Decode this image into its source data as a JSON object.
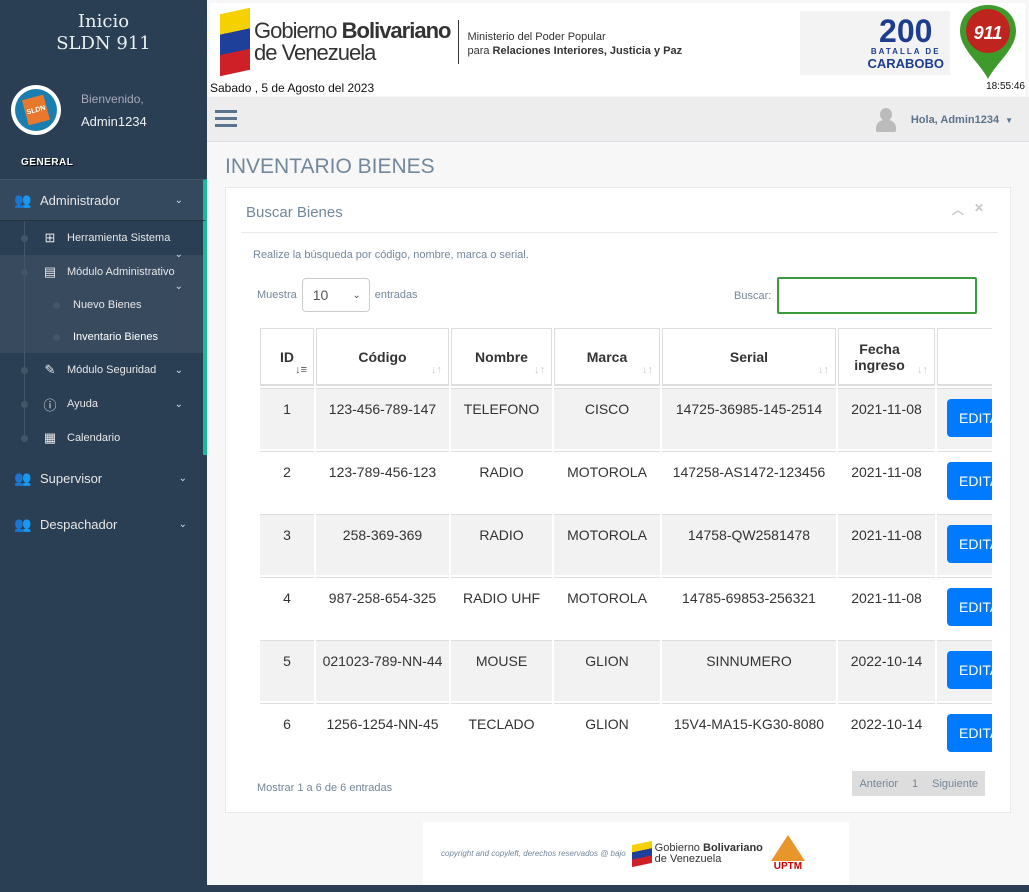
{
  "sidebar": {
    "brand_line1": "Inicio",
    "brand_line2": "SLDN 911",
    "logo_text": "SLDN 911",
    "welcome": "Bienvenido,",
    "username": "Admin1234",
    "section": "GENERAL",
    "items": [
      {
        "label": "Administrador"
      },
      {
        "label": "Herramienta Sistema"
      },
      {
        "label": "Módulo Administrativo"
      },
      {
        "label": "Nuevo Bienes"
      },
      {
        "label": "Inventario Bienes"
      },
      {
        "label": "Módulo Seguridad"
      },
      {
        "label": "Ayuda"
      },
      {
        "label": "Calendario"
      },
      {
        "label": "Supervisor"
      },
      {
        "label": "Despachador"
      }
    ]
  },
  "banner": {
    "gob1": "Gobierno",
    "gob2": "Bolivariano",
    "gob3": "de Venezuela",
    "min1": "Ministerio del Poder Popular",
    "min2": "para",
    "min3": "Relaciones Interiores, Justicia y Paz",
    "date": "Sabado , 5 de Agosto del 2023",
    "time": "18:55:46",
    "bat_num": "200",
    "bat_sub": "BATALLA DE",
    "bat_name": "CARABOBO",
    "pin": "911"
  },
  "topnav": {
    "user": "Hola, Admin1234"
  },
  "page": {
    "title": "INVENTARIO BIENES"
  },
  "panel": {
    "title": "Buscar Bienes",
    "hint": "Realize la búsqueda por código, nombre, marca o serial.",
    "show": "Muestra",
    "entries": "entradas",
    "length": "10",
    "search_label": "Buscar:",
    "search_value": "",
    "columns": [
      "ID",
      "Código",
      "Nombre",
      "Marca",
      "Serial",
      "Fecha ingreso"
    ],
    "rows": [
      {
        "id": "1",
        "codigo": "123-456-789-147",
        "nombre": "TELEFONO",
        "marca": "CISCO",
        "serial": "14725-36985-145-2514",
        "fecha": "2021-11-08",
        "action": "EDITAR"
      },
      {
        "id": "2",
        "codigo": "123-789-456-123",
        "nombre": "RADIO",
        "marca": "MOTOROLA",
        "serial": "147258-AS1472-123456",
        "fecha": "2021-11-08",
        "action": "EDITAR"
      },
      {
        "id": "3",
        "codigo": "258-369-369",
        "nombre": "RADIO",
        "marca": "MOTOROLA",
        "serial": "14758-QW2581478",
        "fecha": "2021-11-08",
        "action": "EDITAR"
      },
      {
        "id": "4",
        "codigo": "987-258-654-325",
        "nombre": "RADIO UHF",
        "marca": "MOTOROLA",
        "serial": "14785-69853-256321",
        "fecha": "2021-11-08",
        "action": "EDITAR"
      },
      {
        "id": "5",
        "codigo": "021023-789-NN-44",
        "nombre": "MOUSE",
        "marca": "GLION",
        "serial": "SINNUMERO",
        "fecha": "2022-10-14",
        "action": "EDITAR"
      },
      {
        "id": "6",
        "codigo": "1256-1254-NN-45",
        "nombre": "TECLADO",
        "marca": "GLION",
        "serial": "15V4-MA15-KG30-8080",
        "fecha": "2022-10-14",
        "action": "EDITAR"
      }
    ],
    "info": "Mostrar 1 a 6 de 6 entradas",
    "prev": "Anterior",
    "page": "1",
    "next": "Siguiente"
  },
  "footer": {
    "text": "copyright and copyleft, derechos reservados @ bajo",
    "gob1": "Gobierno",
    "gob2": "Bolivariano",
    "gob3": "de Venezuela",
    "uptm": "UPTM"
  }
}
